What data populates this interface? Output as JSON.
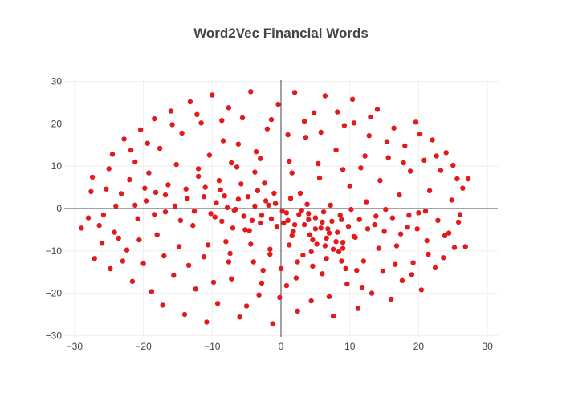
{
  "chart_data": {
    "type": "scatter",
    "title": "Word2Vec Financial Words",
    "xlabel": "",
    "ylabel": "",
    "xlim": [
      -31.5,
      31.5
    ],
    "ylim": [
      -30.3,
      30.3
    ],
    "xticks": [
      -30,
      -20,
      -10,
      0,
      10,
      20,
      30
    ],
    "yticks": [
      -30,
      -20,
      -10,
      0,
      10,
      20,
      30
    ],
    "xtick_labels": [
      "−30",
      "−20",
      "−10",
      "0",
      "10",
      "20",
      "30"
    ],
    "ytick_labels": [
      "−30",
      "−20",
      "−10",
      "0",
      "10",
      "20",
      "30"
    ],
    "grid": true,
    "zero_lines": true,
    "marker_color": "#e31a1c",
    "series": [
      {
        "points": [
          [
            -29.0,
            -4.6
          ],
          [
            -28.0,
            -2.2
          ],
          [
            -27.6,
            4.0
          ],
          [
            -27.4,
            7.4
          ],
          [
            -27.1,
            -11.8
          ],
          [
            -26.4,
            -4.0
          ],
          [
            -25.8,
            -1.5
          ],
          [
            -25.4,
            4.6
          ],
          [
            -25.0,
            9.4
          ],
          [
            -24.8,
            -14.2
          ],
          [
            -24.5,
            12.8
          ],
          [
            -24.0,
            0.6
          ],
          [
            -23.6,
            -7.0
          ],
          [
            -23.2,
            3.5
          ],
          [
            -22.8,
            16.4
          ],
          [
            -22.4,
            -9.8
          ],
          [
            -22.0,
            6.8
          ],
          [
            -21.6,
            -17.2
          ],
          [
            -21.2,
            11.0
          ],
          [
            -20.8,
            -2.4
          ],
          [
            -20.4,
            18.6
          ],
          [
            -20.0,
            -13.0
          ],
          [
            -19.6,
            1.8
          ],
          [
            -19.2,
            8.4
          ],
          [
            -18.8,
            -19.6
          ],
          [
            -18.4,
            21.2
          ],
          [
            -18.0,
            -6.2
          ],
          [
            -17.6,
            14.2
          ],
          [
            -17.2,
            -22.8
          ],
          [
            -16.8,
            -0.8
          ],
          [
            -16.4,
            5.6
          ],
          [
            -16.0,
            23.0
          ],
          [
            -15.6,
            -15.8
          ],
          [
            -15.2,
            10.4
          ],
          [
            -14.8,
            -9.0
          ],
          [
            -14.4,
            17.8
          ],
          [
            -14.0,
            -25.0
          ],
          [
            -13.6,
            2.4
          ],
          [
            -13.2,
            25.2
          ],
          [
            -12.8,
            -4.0
          ],
          [
            -12.4,
            -19.0
          ],
          [
            -12.0,
            7.6
          ],
          [
            -11.6,
            20.2
          ],
          [
            -11.2,
            -11.4
          ],
          [
            -10.8,
            -26.8
          ],
          [
            -10.4,
            12.6
          ],
          [
            -10.0,
            26.8
          ],
          [
            -9.6,
            -2.0
          ],
          [
            -9.2,
            -22.4
          ],
          [
            -8.8,
            4.4
          ],
          [
            -8.4,
            16.0
          ],
          [
            -8.0,
            -7.8
          ],
          [
            -7.6,
            23.8
          ],
          [
            -7.2,
            -16.6
          ],
          [
            -6.8,
            -0.4
          ],
          [
            -6.4,
            9.8
          ],
          [
            -6.0,
            -25.6
          ],
          [
            -5.6,
            21.4
          ],
          [
            -5.2,
            -5.0
          ],
          [
            -4.8,
            2.8
          ],
          [
            -4.4,
            27.6
          ],
          [
            -4.0,
            -12.6
          ],
          [
            -3.6,
            13.4
          ],
          [
            -3.2,
            -20.4
          ],
          [
            -2.8,
            -1.6
          ],
          [
            -2.4,
            6.0
          ],
          [
            -2.0,
            18.8
          ],
          [
            -1.6,
            -9.6
          ],
          [
            -1.2,
            -27.2
          ],
          [
            -0.8,
            1.2
          ],
          [
            -0.4,
            24.6
          ],
          [
            0.4,
            -3.4
          ],
          [
            0.8,
            -18.2
          ],
          [
            1.2,
            11.2
          ],
          [
            1.6,
            -6.4
          ],
          [
            2.0,
            27.4
          ],
          [
            2.4,
            -24.2
          ],
          [
            2.8,
            3.6
          ],
          [
            3.2,
            -11.0
          ],
          [
            3.6,
            16.8
          ],
          [
            4.0,
            -1.2
          ],
          [
            4.4,
            -21.8
          ],
          [
            4.8,
            22.6
          ],
          [
            5.2,
            -8.4
          ],
          [
            5.6,
            7.2
          ],
          [
            6.0,
            -15.4
          ],
          [
            6.4,
            26.6
          ],
          [
            6.8,
            -4.8
          ],
          [
            7.2,
            0.8
          ],
          [
            7.6,
            -25.4
          ],
          [
            8.0,
            13.8
          ],
          [
            8.4,
            -10.2
          ],
          [
            8.8,
            -2.6
          ],
          [
            9.2,
            19.6
          ],
          [
            9.6,
            -17.8
          ],
          [
            10.0,
            5.2
          ],
          [
            10.4,
            25.8
          ],
          [
            10.8,
            -6.8
          ],
          [
            11.2,
            -23.6
          ],
          [
            11.6,
            9.6
          ],
          [
            12.0,
            -12.4
          ],
          [
            12.4,
            1.6
          ],
          [
            12.8,
            17.2
          ],
          [
            13.2,
            -20.0
          ],
          [
            13.6,
            -3.8
          ],
          [
            14.0,
            23.4
          ],
          [
            14.4,
            6.6
          ],
          [
            14.8,
            -14.8
          ],
          [
            15.2,
            -0.2
          ],
          [
            15.6,
            12.0
          ],
          [
            16.0,
            -21.4
          ],
          [
            16.4,
            19.0
          ],
          [
            16.8,
            -8.8
          ],
          [
            17.2,
            3.2
          ],
          [
            17.6,
            -17.0
          ],
          [
            18.0,
            14.8
          ],
          [
            18.4,
            -4.4
          ],
          [
            18.8,
            8.8
          ],
          [
            19.2,
            -12.8
          ],
          [
            19.6,
            20.4
          ],
          [
            20.0,
            -1.0
          ],
          [
            20.4,
            -19.2
          ],
          [
            20.8,
            11.4
          ],
          [
            21.2,
            -7.6
          ],
          [
            21.6,
            4.2
          ],
          [
            22.0,
            16.2
          ],
          [
            22.4,
            -14.0
          ],
          [
            22.8,
            -2.8
          ],
          [
            23.2,
            9.0
          ],
          [
            23.6,
            -11.6
          ],
          [
            24.0,
            13.2
          ],
          [
            24.4,
            -5.8
          ],
          [
            24.8,
            2.0
          ],
          [
            25.2,
            -9.2
          ],
          [
            25.6,
            7.0
          ],
          [
            26.0,
            -1.4
          ],
          [
            26.4,
            4.8
          ],
          [
            26.8,
            -9.0
          ],
          [
            27.2,
            7.0
          ],
          [
            -26.0,
            -8.2
          ],
          [
            -24.2,
            -5.6
          ],
          [
            -23.0,
            -12.4
          ],
          [
            -21.8,
            13.8
          ],
          [
            -20.6,
            -7.4
          ],
          [
            -19.4,
            15.4
          ],
          [
            -18.2,
            3.8
          ],
          [
            -17.0,
            -11.2
          ],
          [
            -15.8,
            19.8
          ],
          [
            -14.6,
            -2.8
          ],
          [
            -13.4,
            -13.4
          ],
          [
            -12.2,
            22.2
          ],
          [
            -11.0,
            5.0
          ],
          [
            -9.8,
            -17.4
          ],
          [
            -8.6,
            20.8
          ],
          [
            -7.4,
            -10.6
          ],
          [
            -6.2,
            15.2
          ],
          [
            -5.0,
            -23.0
          ],
          [
            -3.8,
            8.6
          ],
          [
            -2.6,
            -14.6
          ],
          [
            -1.4,
            21.0
          ],
          [
            -0.2,
            -21.0
          ],
          [
            1.0,
            17.4
          ],
          [
            2.2,
            -16.4
          ],
          [
            3.4,
            20.6
          ],
          [
            4.6,
            -13.6
          ],
          [
            5.8,
            18.0
          ],
          [
            7.0,
            -20.8
          ],
          [
            8.2,
            22.8
          ],
          [
            9.4,
            -14.2
          ],
          [
            10.6,
            20.2
          ],
          [
            11.8,
            -18.6
          ],
          [
            13.0,
            21.6
          ],
          [
            14.2,
            -9.4
          ],
          [
            15.4,
            15.8
          ],
          [
            16.6,
            -13.2
          ],
          [
            17.8,
            10.8
          ],
          [
            19.0,
            -15.6
          ],
          [
            20.2,
            17.6
          ],
          [
            21.4,
            -10.8
          ],
          [
            22.6,
            12.4
          ],
          [
            23.8,
            -6.4
          ],
          [
            25.0,
            10.2
          ],
          [
            25.8,
            -3.2
          ],
          [
            -10.2,
            -1.2
          ],
          [
            -9.4,
            1.4
          ],
          [
            -8.6,
            -3.0
          ],
          [
            -7.8,
            0.2
          ],
          [
            -7.0,
            -4.6
          ],
          [
            -6.2,
            2.2
          ],
          [
            -5.4,
            -1.8
          ],
          [
            -4.6,
            -5.2
          ],
          [
            -3.8,
            0.6
          ],
          [
            -3.0,
            -3.4
          ],
          [
            -2.2,
            1.8
          ],
          [
            -1.4,
            -2.4
          ],
          [
            -0.6,
            -4.2
          ],
          [
            0.2,
            -0.6
          ],
          [
            1.0,
            -2.8
          ],
          [
            1.8,
            -5.4
          ],
          [
            2.6,
            -1.4
          ],
          [
            3.4,
            -3.8
          ],
          [
            4.2,
            -6.2
          ],
          [
            5.0,
            -2.2
          ],
          [
            5.8,
            -4.6
          ],
          [
            6.6,
            -7.0
          ],
          [
            7.4,
            -3.0
          ],
          [
            8.2,
            -5.6
          ],
          [
            9.0,
            -8.0
          ],
          [
            9.8,
            -4.2
          ],
          [
            10.6,
            -6.6
          ],
          [
            11.4,
            -2.6
          ],
          [
            3.0,
            -0.4
          ],
          [
            4.0,
            -2.6
          ],
          [
            5.0,
            -4.8
          ],
          [
            6.0,
            -3.2
          ],
          [
            7.0,
            -5.8
          ],
          [
            8.0,
            -7.8
          ],
          [
            9.0,
            -9.4
          ],
          [
            6.4,
            -8.8
          ],
          [
            7.6,
            -9.6
          ],
          [
            4.6,
            -7.4
          ],
          [
            2.0,
            -3.8
          ],
          [
            0.8,
            -1.0
          ],
          [
            -1.8,
            0.8
          ],
          [
            -4.2,
            -2.8
          ],
          [
            -6.6,
            -0.2
          ],
          [
            -8.2,
            3.0
          ],
          [
            -11.2,
            2.8
          ],
          [
            -12.6,
            -0.6
          ],
          [
            -13.8,
            4.6
          ],
          [
            -15.4,
            0.6
          ],
          [
            -16.8,
            3.2
          ],
          [
            -18.4,
            -1.4
          ],
          [
            -19.8,
            4.8
          ],
          [
            -21.2,
            0.8
          ],
          [
            12.6,
            -4.8
          ],
          [
            13.8,
            -1.8
          ],
          [
            15.0,
            -5.4
          ],
          [
            16.2,
            -2.2
          ],
          [
            17.4,
            -6.0
          ],
          [
            18.6,
            -1.6
          ],
          [
            19.8,
            -4.8
          ],
          [
            21.0,
            -0.6
          ],
          [
            -3.4,
            4.2
          ],
          [
            -1.0,
            3.6
          ],
          [
            1.4,
            2.4
          ],
          [
            3.8,
            1.0
          ],
          [
            6.2,
            -0.8
          ],
          [
            8.6,
            -1.6
          ],
          [
            10.2,
            -0.2
          ],
          [
            -5.8,
            5.8
          ],
          [
            -9.0,
            6.6
          ],
          [
            -12.0,
            9.4
          ],
          [
            -7.2,
            10.8
          ],
          [
            -3.0,
            11.8
          ],
          [
            1.6,
            8.4
          ],
          [
            5.4,
            10.6
          ],
          [
            9.0,
            9.2
          ],
          [
            12.2,
            12.4
          ],
          [
            -4.4,
            -8.4
          ],
          [
            -1.6,
            -10.8
          ],
          [
            1.2,
            -8.6
          ],
          [
            -7.6,
            -12.6
          ],
          [
            -10.6,
            -8.6
          ],
          [
            0.0,
            -14.2
          ],
          [
            -2.8,
            -17.6
          ],
          [
            11.0,
            -14.6
          ],
          [
            8.8,
            -12.4
          ],
          [
            6.6,
            -11.8
          ],
          [
            4.4,
            -10.2
          ],
          [
            2.4,
            -12.6
          ]
        ]
      }
    ]
  }
}
